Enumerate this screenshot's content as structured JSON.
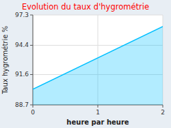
{
  "chart_data": {
    "type": "area",
    "title": "Evolution du taux d'hygrométrie",
    "xlabel": "heure par heure",
    "ylabel": "Taux hygrométrie %",
    "x": [
      0,
      2
    ],
    "values": [
      90.2,
      96.2
    ],
    "color": "#00bfff",
    "xlim": [
      0,
      2
    ],
    "ylim": [
      88.7,
      97.3
    ],
    "xticks": [
      0,
      1,
      2
    ],
    "yticks": [
      88.7,
      91.6,
      94.4,
      97.3
    ],
    "grid": true
  }
}
